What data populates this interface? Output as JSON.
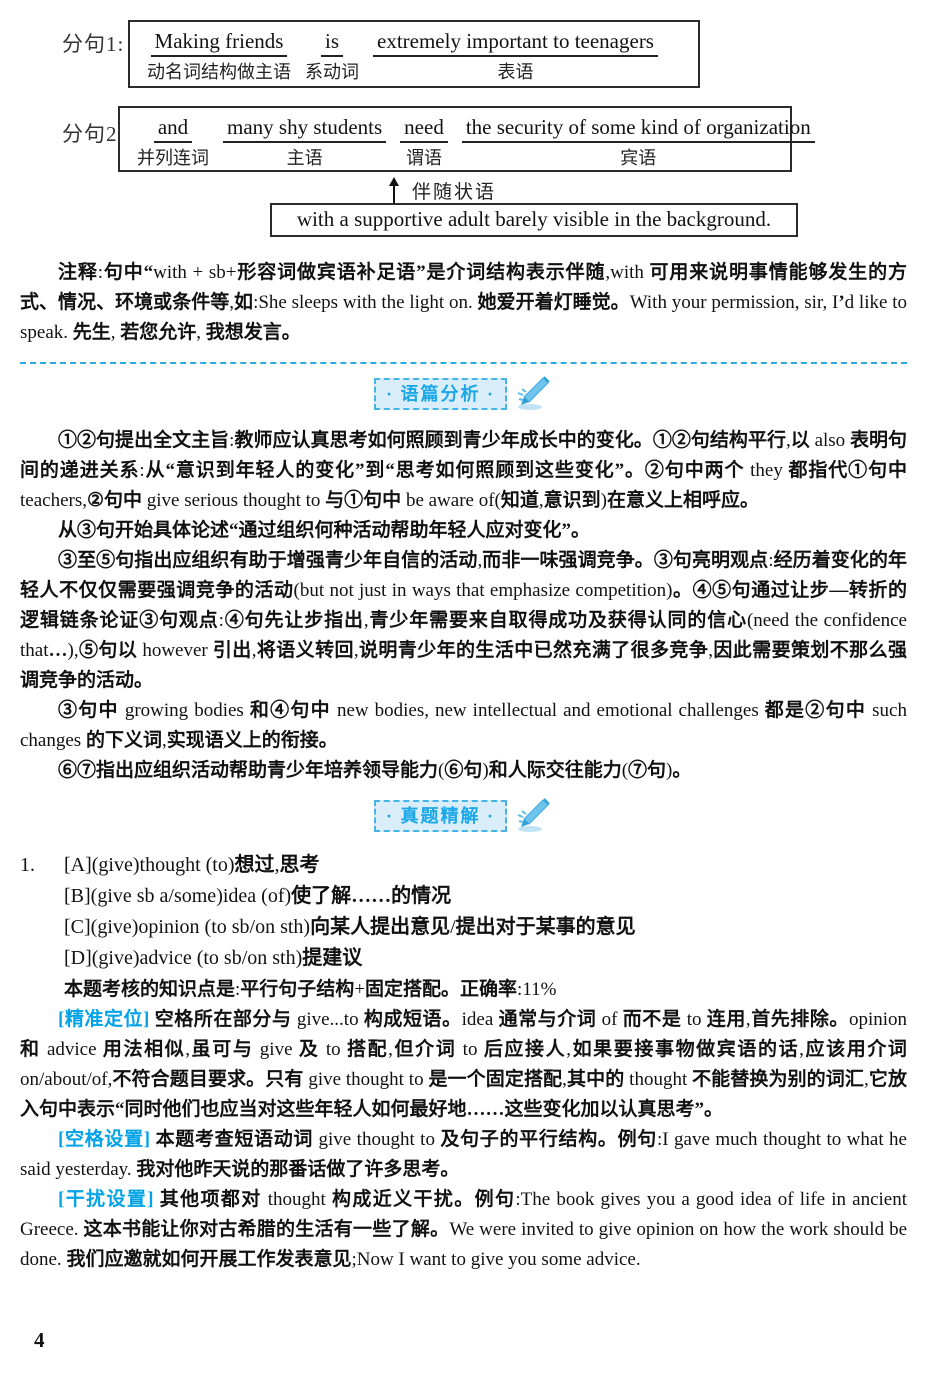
{
  "accent_color": "#00A2E8",
  "diagram": {
    "clause1": {
      "label": "分句1:",
      "segments": [
        {
          "text": "Making friends",
          "role": "动名词结构做主语"
        },
        {
          "text": "is",
          "role": "系动词"
        },
        {
          "text": "extremely important to teenagers",
          "role": "表语"
        }
      ]
    },
    "clause2": {
      "label": "分句2:",
      "segments": [
        {
          "text": "and",
          "role": "并列连词"
        },
        {
          "text": "many shy students",
          "role": "主语"
        },
        {
          "text": "need",
          "role": "谓语"
        },
        {
          "text": "the security of some kind of organization",
          "role": "宾语"
        }
      ]
    },
    "adverbial": {
      "arrow_label": "伴随状语",
      "text": "with a supportive adult barely visible in the background."
    }
  },
  "note": "注释:句中“with + sb+形容词做宾语补足语”是介词结构表示伴随,with 可用来说明事情能够发生的方式、情况、环境或条件等,如:She sleeps with the light on. 她爱开着灯睡觉。With your permission, sir, I’d like to speak. 先生, 若您允许, 我想发言。",
  "badge1": {
    "label": "· 语篇分析 ·",
    "icon": "pen-icon"
  },
  "badge2": {
    "label": "· 真题精解 ·",
    "icon": "pen-icon"
  },
  "analysis": {
    "paragraphs": [
      "①②句提出全文主旨:教师应认真思考如何照顾到青少年成长中的变化。①②句结构平行,以 also 表明句间的递进关系:从“意识到年轻人的变化”到“思考如何照顾到这些变化”。②句中两个 they 都指代①句中 teachers,②句中 give serious thought to 与①句中 be aware of(知道,意识到)在意义上相呼应。",
      "从③句开始具体论述“通过组织何种活动帮助年轻人应对变化”。",
      "③至⑤句指出应组织有助于增强青少年自信的活动,而非一味强调竞争。③句亮明观点:经历着变化的年轻人不仅仅需要强调竞争的活动(but not just in ways that emphasize competition)。④⑤句通过让步—转折的逻辑链条论证③句观点:④句先让步指出,青少年需要来自取得成功及获得认同的信心(need the confidence that…),⑤句以 however 引出,将语义转回,说明青少年的生活中已然充满了很多竞争,因此需要策划不那么强调竞争的活动。",
      "③句中 growing bodies 和④句中 new bodies, new intellectual and emotional challenges 都是②句中 such changes 的下义词,实现语义上的衔接。",
      "⑥⑦指出应组织活动帮助青少年培养领导能力(⑥句)和人际交往能力(⑦句)。"
    ]
  },
  "question": {
    "number": "1.",
    "options": [
      "[A](give)thought (to)想过,思考",
      "[B](give sb a/some)idea (of)使了解……的情况",
      "[C](give)opinion (to sb/on sth)向某人提出意见/提出对于某事的意见",
      "[D](give)advice (to sb/on sth)提建议"
    ],
    "knowledge": "本题考核的知识点是:平行句子结构+固定搭配。正确率:11%",
    "blocks": [
      {
        "label": "[精准定位]",
        "text": "空格所在部分与 give...to 构成短语。idea 通常与介词 of 而不是 to 连用,首先排除。opinion 和 advice 用法相似,虽可与 give 及 to 搭配,但介词 to 后应接人,如果要接事物做宾语的话,应该用介词 on/about/of,不符合题目要求。只有 give thought to 是一个固定搭配,其中的 thought 不能替换为别的词汇,它放入句中表示“同时他们也应当对这些年轻人如何最好地……这些变化加以认真思考”。"
      },
      {
        "label": "[空格设置]",
        "text": "本题考查短语动词 give thought to 及句子的平行结构。例句:I gave much thought to what he said yesterday. 我对他昨天说的那番话做了许多思考。"
      },
      {
        "label": "[干扰设置]",
        "text": "其他项都对 thought 构成近义干扰。例句:The book gives you a good idea of life in ancient Greece. 这本书能让你对古希腊的生活有一些了解。We were invited to give opinion on how the work should be done. 我们应邀就如何开展工作发表意见;Now I want to give you some advice."
      }
    ]
  },
  "page": {
    "number": "4"
  }
}
